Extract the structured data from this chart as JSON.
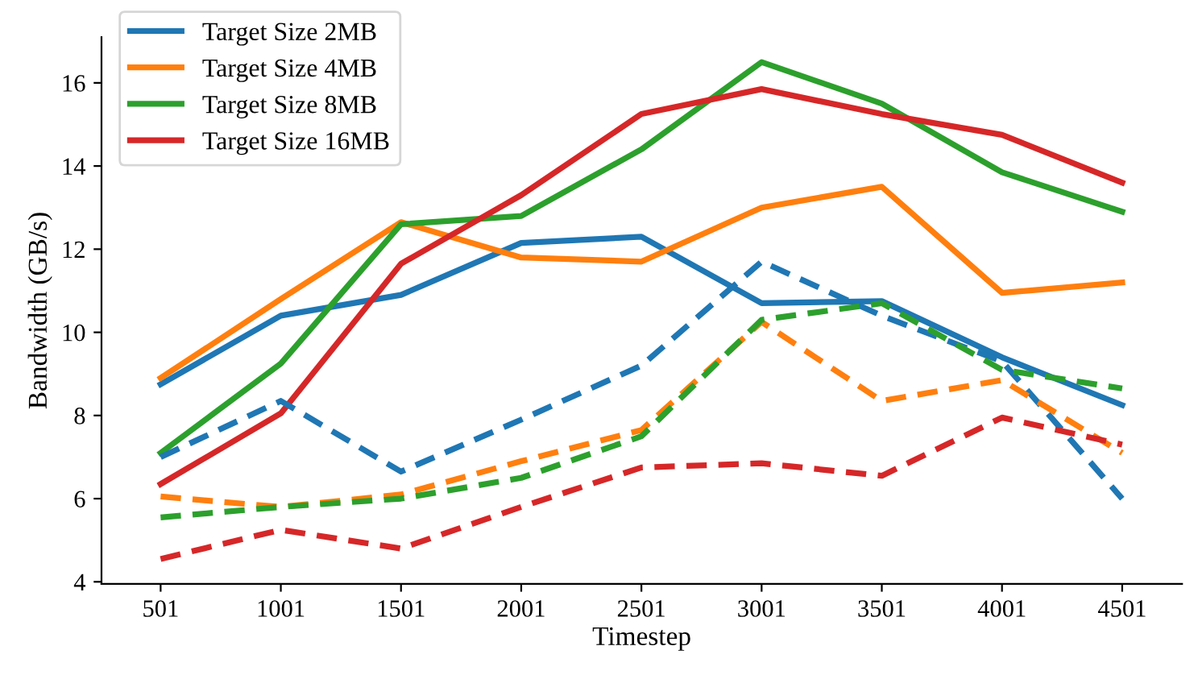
{
  "chart_data": {
    "type": "line",
    "xlabel": "Timestep",
    "ylabel": "Bandwidth (GB/s)",
    "x": [
      501,
      1001,
      1501,
      2001,
      2501,
      3001,
      3501,
      4001,
      4501
    ],
    "xlim": [
      255,
      4750
    ],
    "xticks": [
      501,
      1001,
      1501,
      2001,
      2501,
      3001,
      3501,
      4001,
      4501
    ],
    "ylim": [
      3.95,
      17.1
    ],
    "yticks": [
      4,
      6,
      8,
      10,
      12,
      14,
      16
    ],
    "grid": false,
    "legend": "top left",
    "marker": "none",
    "series": [
      {
        "name": "Target Size 2MB",
        "color": "#1f77b4",
        "line_style": "solid",
        "values": [
          8.75,
          10.4,
          10.9,
          12.15,
          12.3,
          10.7,
          10.75,
          9.4,
          8.25
        ]
      },
      {
        "name": "Target Size 4MB",
        "color": "#ff7f0e",
        "line_style": "solid",
        "values": [
          8.9,
          10.8,
          12.65,
          11.8,
          11.7,
          13.0,
          13.5,
          10.95,
          11.2
        ]
      },
      {
        "name": "Target Size 8MB",
        "color": "#2ca02c",
        "line_style": "solid",
        "values": [
          7.1,
          9.25,
          12.6,
          12.8,
          14.4,
          16.5,
          15.5,
          13.85,
          12.9
        ]
      },
      {
        "name": "Target Size 16MB",
        "color": "#d62728",
        "line_style": "solid",
        "values": [
          6.35,
          8.05,
          11.65,
          13.3,
          15.25,
          15.85,
          15.25,
          14.75,
          13.6
        ]
      },
      {
        "color": "#1f77b4",
        "line_style": "dashed",
        "values": [
          7.0,
          8.35,
          6.65,
          7.9,
          9.2,
          11.7,
          10.4,
          9.3,
          6.0
        ]
      },
      {
        "color": "#ff7f0e",
        "line_style": "dashed",
        "values": [
          6.05,
          5.8,
          6.1,
          6.9,
          7.65,
          10.25,
          8.35,
          8.85,
          7.1
        ]
      },
      {
        "color": "#2ca02c",
        "line_style": "dashed",
        "values": [
          5.55,
          5.8,
          6.0,
          6.5,
          7.5,
          10.3,
          10.7,
          9.1,
          8.65
        ]
      },
      {
        "color": "#d62728",
        "line_style": "dashed",
        "values": [
          4.55,
          5.25,
          4.8,
          5.8,
          6.75,
          6.85,
          6.55,
          7.95,
          7.3
        ]
      }
    ]
  }
}
